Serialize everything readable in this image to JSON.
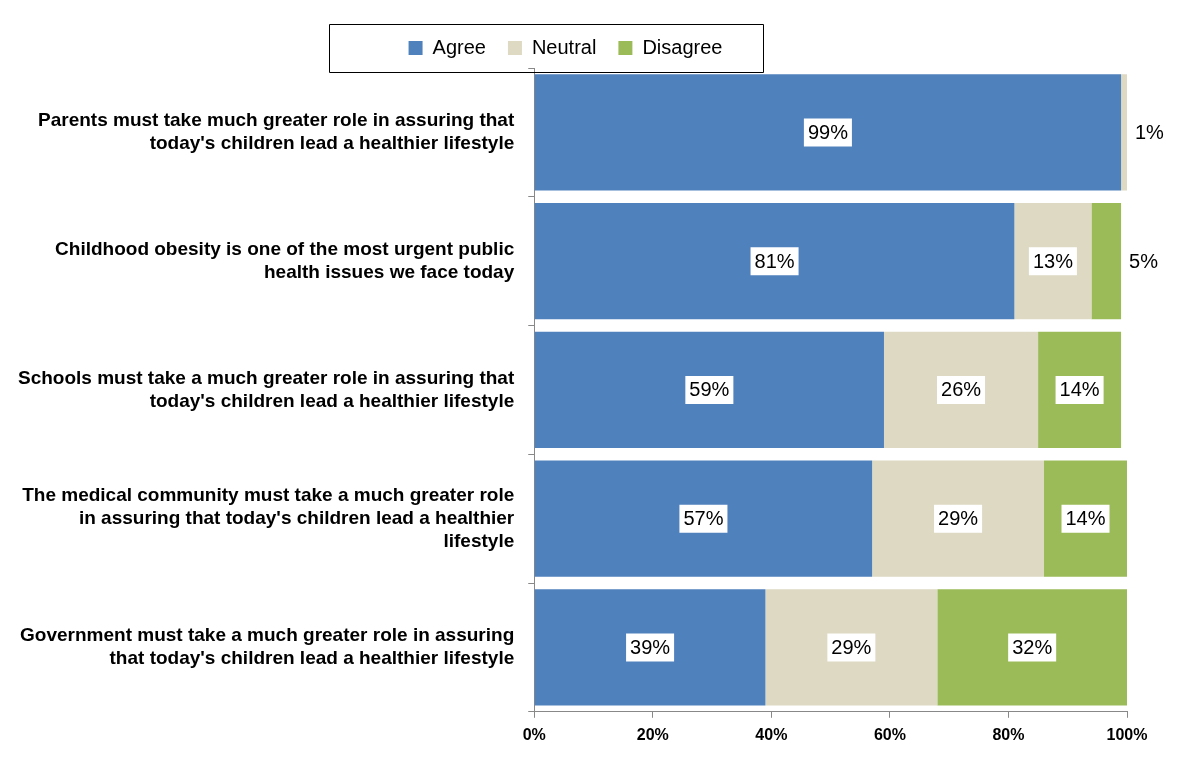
{
  "chart_data": {
    "type": "bar",
    "orientation": "horizontal",
    "stacked": true,
    "categories": [
      "Parents must take much greater role in assuring that today's children lead a healthier lifestyle",
      "Childhood obesity is one of the most urgent public health issues we face today",
      "Schools must take a much greater role in assuring that today's children lead a healthier lifestyle",
      "The medical community must take a much greater role in assuring that today's children lead a healthier lifestyle",
      "Government must take a much greater role in assuring that today's children lead a healthier lifestyle"
    ],
    "series": [
      {
        "name": "Agree",
        "color": "#4f81bd",
        "values": [
          99,
          81,
          59,
          57,
          39
        ],
        "value_labels": [
          "99%",
          "81%",
          "59%",
          "57%",
          "39%"
        ]
      },
      {
        "name": "Neutral",
        "color": "#ddd9c3",
        "values": [
          1,
          13,
          26,
          29,
          29
        ],
        "value_labels": [
          "1%",
          "13%",
          "26%",
          "29%",
          "29%"
        ]
      },
      {
        "name": "Disagree",
        "color": "#9bbb59",
        "values": [
          null,
          5,
          14,
          14,
          32
        ],
        "value_labels": [
          null,
          "5%",
          "14%",
          "14%",
          "32%"
        ]
      }
    ],
    "xlim": [
      0,
      100
    ],
    "xticks": [
      {
        "value": 0,
        "label": "0%"
      },
      {
        "value": 20,
        "label": "20%"
      },
      {
        "value": 40,
        "label": "40%"
      },
      {
        "value": 60,
        "label": "60%"
      },
      {
        "value": 80,
        "label": "80%"
      },
      {
        "value": 100,
        "label": "100%"
      }
    ],
    "grid": false,
    "legend": "top"
  }
}
